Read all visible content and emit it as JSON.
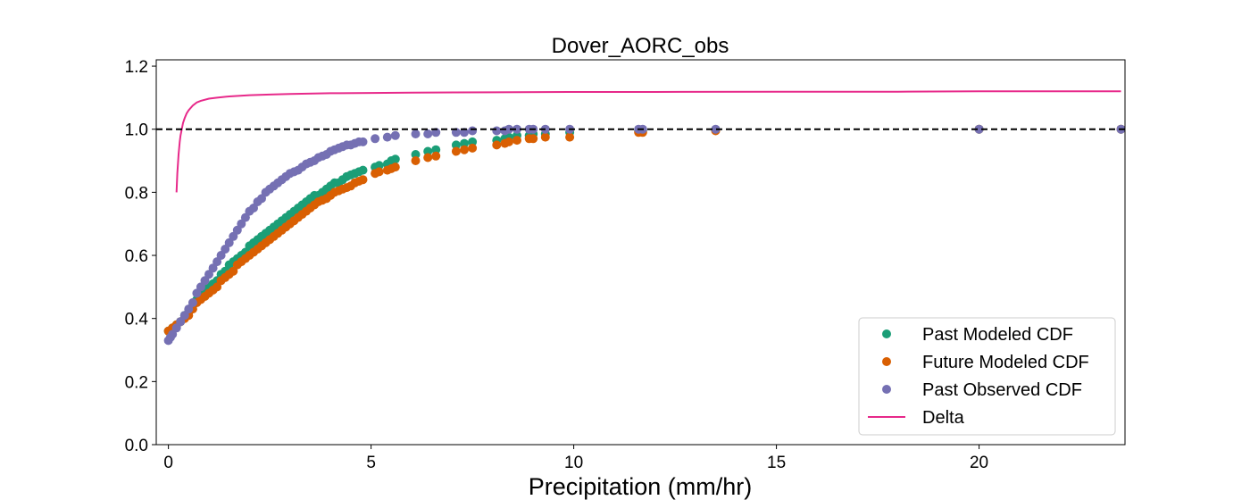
{
  "chart_data": {
    "type": "scatter",
    "title": "Dover_AORC_obs",
    "xlabel": "Precipitation (mm/hr)",
    "ylabel": "",
    "xlim": [
      -0.3,
      23.6
    ],
    "ylim": [
      0.0,
      1.22
    ],
    "xticks": [
      0,
      5,
      10,
      15,
      20
    ],
    "yticks": [
      0.0,
      0.2,
      0.4,
      0.6,
      0.8,
      1.0,
      1.2
    ],
    "xtick_labels": [
      "0",
      "5",
      "10",
      "15",
      "20"
    ],
    "ytick_labels": [
      "0.0",
      "0.2",
      "0.4",
      "0.6",
      "0.8",
      "1.0",
      "1.2"
    ],
    "reference_line": {
      "y": 1.0,
      "style": "dashed",
      "color": "#000000"
    },
    "legend_position": "lower-right",
    "grid": false,
    "series": [
      {
        "name": "Past Modeled CDF",
        "kind": "scatter",
        "color": "#1b9e77",
        "x": [
          0.0,
          0.1,
          0.2,
          0.3,
          0.4,
          0.5,
          0.6,
          0.7,
          0.8,
          0.9,
          1.0,
          1.1,
          1.2,
          1.3,
          1.4,
          1.5,
          1.6,
          1.7,
          1.8,
          1.9,
          2.0,
          2.1,
          2.2,
          2.3,
          2.4,
          2.5,
          2.6,
          2.7,
          2.8,
          2.9,
          3.0,
          3.1,
          3.2,
          3.3,
          3.4,
          3.5,
          3.6,
          3.7,
          3.8,
          3.9,
          4.0,
          4.1,
          4.2,
          4.3,
          4.4,
          4.5,
          4.6,
          4.7,
          4.8,
          5.1,
          5.2,
          5.4,
          5.5,
          5.6,
          6.1,
          6.4,
          6.6,
          7.1,
          7.3,
          7.5,
          8.1,
          8.3,
          8.4,
          8.6,
          8.9,
          9.0,
          9.3,
          9.9,
          11.6,
          11.7,
          13.5,
          20.0,
          23.5
        ],
        "y": [
          0.36,
          0.37,
          0.38,
          0.39,
          0.41,
          0.42,
          0.44,
          0.46,
          0.48,
          0.49,
          0.5,
          0.51,
          0.52,
          0.54,
          0.55,
          0.57,
          0.58,
          0.59,
          0.6,
          0.61,
          0.63,
          0.64,
          0.65,
          0.66,
          0.67,
          0.68,
          0.69,
          0.7,
          0.71,
          0.72,
          0.73,
          0.74,
          0.75,
          0.76,
          0.77,
          0.78,
          0.79,
          0.79,
          0.8,
          0.81,
          0.82,
          0.83,
          0.83,
          0.84,
          0.85,
          0.855,
          0.86,
          0.865,
          0.87,
          0.88,
          0.885,
          0.89,
          0.9,
          0.905,
          0.92,
          0.93,
          0.935,
          0.95,
          0.955,
          0.96,
          0.965,
          0.97,
          0.975,
          0.98,
          0.98,
          0.985,
          0.985,
          0.99,
          0.995,
          0.995,
          0.997,
          1.0,
          1.0
        ]
      },
      {
        "name": "Future Modeled CDF",
        "kind": "scatter",
        "color": "#d95f02",
        "x": [
          0.0,
          0.1,
          0.2,
          0.3,
          0.4,
          0.5,
          0.6,
          0.7,
          0.8,
          0.9,
          1.0,
          1.1,
          1.2,
          1.3,
          1.4,
          1.5,
          1.6,
          1.7,
          1.8,
          1.9,
          2.0,
          2.1,
          2.2,
          2.3,
          2.4,
          2.5,
          2.6,
          2.7,
          2.8,
          2.9,
          3.0,
          3.1,
          3.2,
          3.3,
          3.4,
          3.5,
          3.6,
          3.7,
          3.8,
          3.9,
          4.0,
          4.1,
          4.2,
          4.3,
          4.4,
          4.5,
          4.6,
          4.7,
          4.8,
          5.1,
          5.2,
          5.4,
          5.5,
          5.6,
          6.1,
          6.4,
          6.6,
          7.1,
          7.3,
          7.5,
          8.1,
          8.3,
          8.4,
          8.6,
          8.9,
          9.0,
          9.3,
          9.9,
          11.6,
          11.7,
          13.5,
          20.0,
          23.5
        ],
        "y": [
          0.36,
          0.37,
          0.38,
          0.39,
          0.4,
          0.41,
          0.43,
          0.45,
          0.46,
          0.47,
          0.48,
          0.49,
          0.5,
          0.52,
          0.53,
          0.54,
          0.55,
          0.57,
          0.58,
          0.59,
          0.6,
          0.61,
          0.62,
          0.63,
          0.64,
          0.65,
          0.66,
          0.67,
          0.68,
          0.69,
          0.7,
          0.71,
          0.72,
          0.73,
          0.74,
          0.75,
          0.76,
          0.77,
          0.775,
          0.78,
          0.79,
          0.8,
          0.805,
          0.81,
          0.815,
          0.82,
          0.83,
          0.835,
          0.84,
          0.86,
          0.865,
          0.87,
          0.875,
          0.88,
          0.9,
          0.91,
          0.915,
          0.93,
          0.935,
          0.94,
          0.95,
          0.955,
          0.96,
          0.965,
          0.97,
          0.97,
          0.975,
          0.975,
          0.99,
          0.99,
          0.995,
          1.0,
          1.0
        ]
      },
      {
        "name": "Past Observed CDF",
        "kind": "scatter",
        "color": "#7570b3",
        "x": [
          0.0,
          0.05,
          0.1,
          0.2,
          0.3,
          0.4,
          0.5,
          0.6,
          0.7,
          0.8,
          0.9,
          1.0,
          1.1,
          1.2,
          1.3,
          1.4,
          1.5,
          1.6,
          1.7,
          1.8,
          1.9,
          2.0,
          2.1,
          2.2,
          2.3,
          2.4,
          2.5,
          2.6,
          2.7,
          2.8,
          2.9,
          3.0,
          3.1,
          3.2,
          3.3,
          3.4,
          3.5,
          3.6,
          3.7,
          3.8,
          3.9,
          4.0,
          4.1,
          4.2,
          4.3,
          4.4,
          4.5,
          4.6,
          4.7,
          4.8,
          5.1,
          5.4,
          5.6,
          6.1,
          6.4,
          6.6,
          7.1,
          7.3,
          7.5,
          8.1,
          8.3,
          8.4,
          8.6,
          8.9,
          9.0,
          9.3,
          9.9,
          11.6,
          11.7,
          13.5,
          20.0,
          23.5
        ],
        "y": [
          0.33,
          0.34,
          0.35,
          0.37,
          0.39,
          0.41,
          0.43,
          0.45,
          0.48,
          0.5,
          0.52,
          0.54,
          0.56,
          0.58,
          0.6,
          0.62,
          0.64,
          0.66,
          0.68,
          0.7,
          0.72,
          0.74,
          0.75,
          0.77,
          0.78,
          0.8,
          0.81,
          0.82,
          0.83,
          0.84,
          0.85,
          0.86,
          0.865,
          0.87,
          0.88,
          0.89,
          0.895,
          0.9,
          0.91,
          0.915,
          0.92,
          0.93,
          0.935,
          0.94,
          0.945,
          0.95,
          0.95,
          0.955,
          0.96,
          0.96,
          0.97,
          0.975,
          0.98,
          0.985,
          0.985,
          0.99,
          0.99,
          0.99,
          0.995,
          0.995,
          0.995,
          1.0,
          1.0,
          1.0,
          1.0,
          1.0,
          1.0,
          1.0,
          1.0,
          1.0,
          1.0,
          1.0
        ]
      },
      {
        "name": "Delta",
        "kind": "line",
        "color": "#e7298a",
        "x": [
          0.2,
          0.22,
          0.25,
          0.28,
          0.3,
          0.33,
          0.36,
          0.4,
          0.45,
          0.5,
          0.6,
          0.7,
          0.8,
          1.0,
          1.2,
          1.5,
          2.0,
          2.5,
          3.0,
          4.0,
          5.0,
          6.0,
          8.0,
          10.0,
          12.0,
          15.0,
          18.0,
          20.0,
          23.5
        ],
        "y": [
          0.8,
          0.86,
          0.92,
          0.96,
          0.98,
          1.0,
          1.02,
          1.035,
          1.05,
          1.06,
          1.075,
          1.085,
          1.09,
          1.097,
          1.1,
          1.104,
          1.108,
          1.11,
          1.112,
          1.114,
          1.115,
          1.116,
          1.117,
          1.118,
          1.118,
          1.119,
          1.119,
          1.12,
          1.12
        ]
      }
    ]
  }
}
